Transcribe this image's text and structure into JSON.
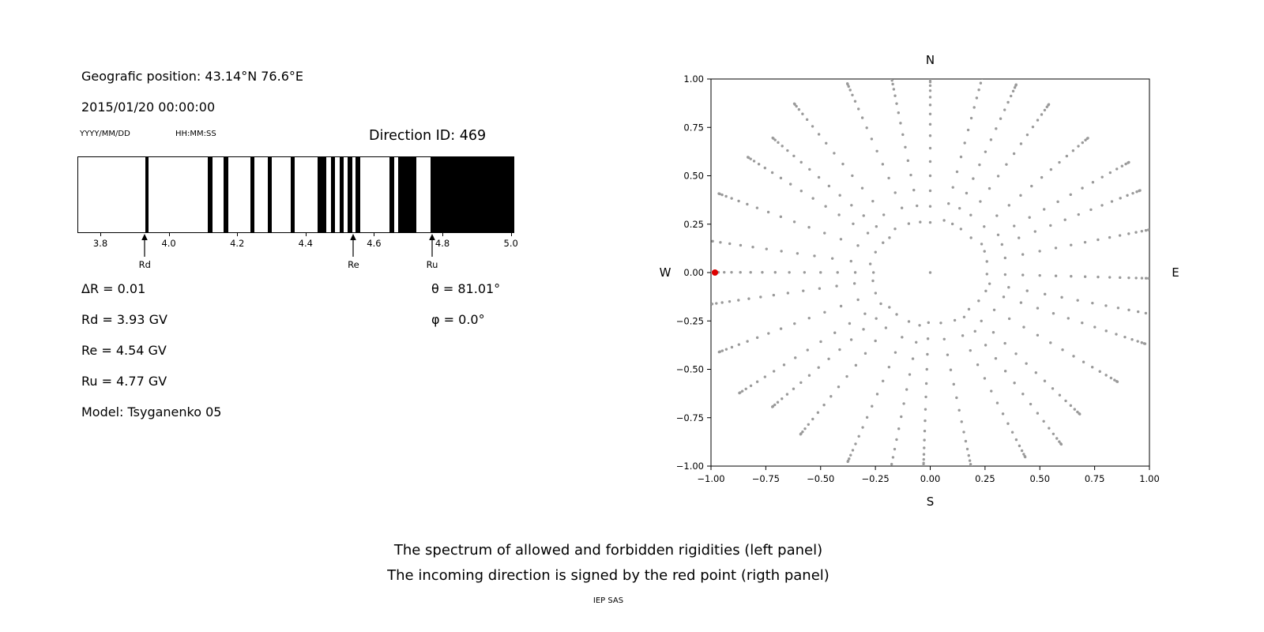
{
  "header": {
    "geo_position": "Geografic position: 43.14°N 76.6°E",
    "datetime": "2015/01/20 00:00:00",
    "date_format_label": "YYYY/MM/DD",
    "time_format_label": "HH:MM:SS",
    "direction_id": "Direction ID: 469"
  },
  "parameters": {
    "delta_r": "ΔR = 0.01",
    "theta": "θ = 81.01°",
    "rd": "Rd = 3.93 GV",
    "phi": "φ = 0.0°",
    "re": "Re = 4.54 GV",
    "ru": "Ru = 4.77 GV",
    "model": "Model: Tsyganenko 05"
  },
  "captions": {
    "line1": "The spectrum of allowed and forbidden rigidities (left panel)",
    "line2": "The incoming direction is signed by the red point (rigth panel)",
    "credit": "IEP SAS"
  },
  "chart_data": [
    {
      "type": "bar",
      "title": "Spectrum of allowed (white) and forbidden (black) rigidities",
      "xlim": [
        3.733,
        5.01
      ],
      "xticks": [
        3.8,
        4.0,
        4.2,
        4.4,
        4.6,
        4.8,
        5.0
      ],
      "xtick_labels": [
        "3.8",
        "4.0",
        "4.2",
        "4.4",
        "4.6",
        "4.8",
        "5.0"
      ],
      "bar_color": "#000000",
      "black_bands": [
        [
          3.929,
          3.939
        ],
        [
          4.114,
          4.128
        ],
        [
          4.16,
          4.174
        ],
        [
          4.239,
          4.25
        ],
        [
          4.29,
          4.301
        ],
        [
          4.357,
          4.368
        ],
        [
          4.435,
          4.461
        ],
        [
          4.474,
          4.486
        ],
        [
          4.5,
          4.511
        ],
        [
          4.523,
          4.537
        ],
        [
          4.546,
          4.56
        ],
        [
          4.645,
          4.659
        ],
        [
          4.671,
          4.724
        ],
        [
          4.766,
          5.01
        ]
      ],
      "markers": [
        {
          "label": "Rd",
          "value": 3.93
        },
        {
          "label": "Re",
          "value": 4.54
        },
        {
          "label": "Ru",
          "value": 4.77
        }
      ]
    },
    {
      "type": "scatter",
      "xlim": [
        -1,
        1
      ],
      "ylim": [
        -1,
        1
      ],
      "xticks": [
        -1,
        -0.75,
        -0.5,
        -0.25,
        0,
        0.25,
        0.5,
        0.75,
        1
      ],
      "xtick_labels": [
        "−1.00",
        "−0.75",
        "−0.50",
        "−0.25",
        "0.00",
        "0.25",
        "0.50",
        "0.75",
        "1.00"
      ],
      "yticks": [
        1,
        0.75,
        0.5,
        0.25,
        0,
        -0.25,
        -0.5,
        -0.75,
        -1
      ],
      "ytick_labels": [
        "1.00",
        "0.75",
        "0.50",
        "0.25",
        "0.00",
        "−0.25",
        "−0.50",
        "−0.75",
        "−1.00"
      ],
      "direction_labels": {
        "top": "N",
        "bottom": "S",
        "left": "W",
        "right": "E"
      },
      "dot_color": "#9a9a9a",
      "spoke_pattern": {
        "azimuth_count": 32,
        "zenith_start_deg": 15,
        "zenith_end_deg": 90,
        "zenith_step_deg": 5,
        "radius_rule": "sin(zenith)"
      },
      "extra_points": [
        [
          0,
          0
        ]
      ],
      "red_point": {
        "x": -1.0,
        "y": 0.0,
        "color": "#dd0000"
      }
    }
  ]
}
